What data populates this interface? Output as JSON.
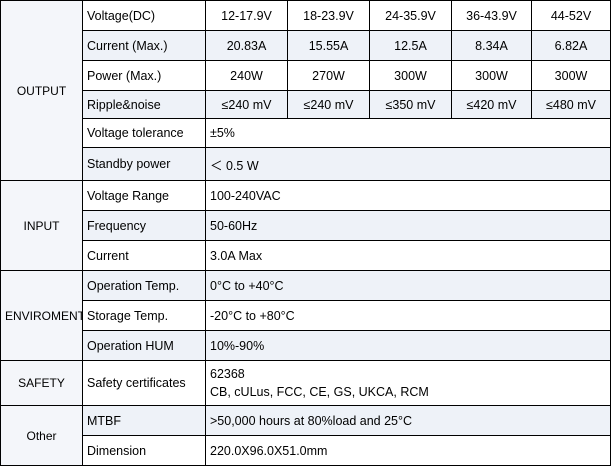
{
  "table": {
    "sections": [
      {
        "name": "OUTPUT",
        "rows": [
          {
            "label": "Voltage(DC)",
            "cells": [
              "12-17.9V",
              "18-23.9V",
              "24-35.9V",
              "36-43.9V",
              "44-52V"
            ]
          },
          {
            "label": "Current (Max.)",
            "cells": [
              "20.83A",
              "15.55A",
              "12.5A",
              "8.34A",
              "6.82A"
            ]
          },
          {
            "label": "Power (Max.)",
            "cells": [
              "240W",
              "270W",
              "300W",
              "300W",
              "300W"
            ]
          },
          {
            "label": "Ripple&noise",
            "cells": [
              "≤240 mV",
              "≤240 mV",
              "≤350 mV",
              "≤420 mV",
              "≤480 mV"
            ]
          },
          {
            "label": "Voltage tolerance",
            "cells": [
              "±5%"
            ]
          },
          {
            "label": "Standby power",
            "cells": [
              "＜ 0.5 W"
            ]
          }
        ]
      },
      {
        "name": "INPUT",
        "rows": [
          {
            "label": "Voltage Range",
            "cells": [
              "100-240VAC"
            ]
          },
          {
            "label": "Frequency",
            "cells": [
              "50-60Hz"
            ]
          },
          {
            "label": "Current",
            "cells": [
              "3.0A Max"
            ]
          }
        ]
      },
      {
        "name": "ENVIROMENT",
        "rows": [
          {
            "label": "Operation Temp.",
            "cells": [
              "0°C to +40°C"
            ]
          },
          {
            "label": "Storage Temp.",
            "cells": [
              "-20°C to +80°C"
            ]
          },
          {
            "label": "Operation HUM",
            "cells": [
              "10%-90%"
            ]
          }
        ]
      },
      {
        "name": "SAFETY",
        "rows": [
          {
            "label": "Safety certificates",
            "lines": [
              "62368",
              "CB, cULus, FCC, CE, GS, UKCA, RCM"
            ]
          }
        ]
      },
      {
        "name": "Other",
        "rows": [
          {
            "label": "MTBF",
            "cells": [
              ">50,000 hours at 80%load and 25°C"
            ]
          },
          {
            "label": "Dimension",
            "cells": [
              "220.0X96.0X51.0mm"
            ]
          }
        ]
      }
    ]
  }
}
